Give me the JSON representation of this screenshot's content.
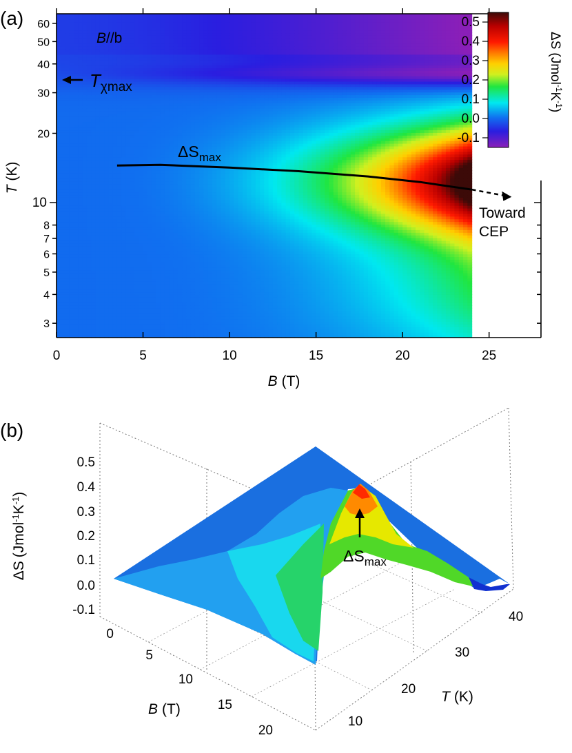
{
  "chart_data": [
    {
      "panel": "(a)",
      "type": "heatmap",
      "x_axis": {
        "label_var": "B",
        "label_unit": "(T)",
        "range": [
          0,
          28
        ],
        "ticks": [
          0,
          5,
          10,
          15,
          20,
          25
        ]
      },
      "y_axis": {
        "label_var": "T",
        "label_unit": "(K)",
        "scale": "log",
        "range": [
          2.6,
          66
        ],
        "ticks": [
          3,
          4,
          5,
          6,
          7,
          8,
          10,
          20,
          30,
          40,
          50,
          60
        ]
      },
      "colorbar": {
        "label_html": "ΔS (Jmol⁻¹K⁻¹)",
        "label_var": "ΔS",
        "label_unit": "(Jmol",
        "sup1": "-1",
        "mid": "K",
        "sup2": "-1",
        "close": ")",
        "range": [
          -0.15,
          0.55
        ],
        "ticks": [
          -0.1,
          0.0,
          0.1,
          0.2,
          0.3,
          0.4,
          0.5
        ],
        "tick_labels": [
          "-0.1",
          "0.0",
          "0.1",
          "0.2",
          "0.3",
          "0.4",
          "0.5"
        ]
      },
      "data_extent": {
        "B": [
          0,
          24
        ],
        "T": [
          2.6,
          66
        ]
      },
      "field_direction": {
        "prefix": "B",
        "suffix": "//b"
      },
      "annotations": {
        "txmax": {
          "var": "T",
          "sub": "χmax",
          "at_T": 35
        },
        "dsmax_label": {
          "var": "ΔS",
          "sub": "max"
        },
        "toward": [
          "Toward",
          "CEP"
        ]
      },
      "dsmax_line": {
        "B": [
          3.5,
          6,
          10,
          14,
          18,
          21,
          24
        ],
        "T": [
          14.5,
          14.6,
          14.2,
          13.7,
          13.0,
          12.3,
          11.4
        ]
      },
      "dsmax_extension": {
        "B": [
          24,
          26.3
        ],
        "T": [
          11.4,
          10.6
        ]
      }
    },
    {
      "panel": "(b)",
      "type": "surface",
      "x_axis": {
        "label_var": "B",
        "label_unit": "(T)",
        "ticks": [
          0,
          5,
          10,
          15,
          20
        ]
      },
      "y_axis": {
        "label_var": "T",
        "label_unit": "(K)",
        "ticks": [
          10,
          20,
          30,
          40
        ]
      },
      "z_axis": {
        "label_var": "ΔS",
        "label_unit": "(Jmol",
        "sup1": "-1",
        "mid": "K",
        "sup2": "-1",
        "close": ")",
        "ticks": [
          "-0.1",
          "0.0",
          "0.1",
          "0.2",
          "0.3",
          "0.4",
          "0.5"
        ]
      },
      "annotation": {
        "var": "ΔS",
        "sub": "max"
      }
    }
  ]
}
